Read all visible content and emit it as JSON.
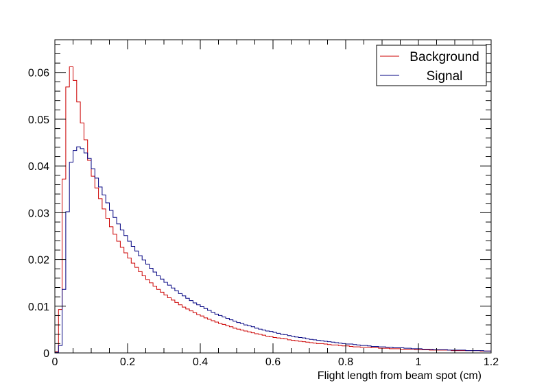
{
  "chart_data": {
    "type": "line",
    "style": "step-histogram",
    "title": "",
    "xlabel": "Flight length from beam spot (cm)",
    "ylabel": "",
    "xlim": [
      0,
      1.2
    ],
    "ylim": [
      0,
      0.067
    ],
    "x_ticks": [
      "0",
      "0.2",
      "0.4",
      "0.6",
      "0.8",
      "1",
      "1.2"
    ],
    "y_ticks": [
      "0",
      "0.01",
      "0.02",
      "0.03",
      "0.04",
      "0.05",
      "0.06"
    ],
    "x_tick_values": [
      0,
      0.2,
      0.4,
      0.6,
      0.8,
      1.0,
      1.2
    ],
    "y_tick_values": [
      0,
      0.01,
      0.02,
      0.03,
      0.04,
      0.05,
      0.06
    ],
    "grid": false,
    "legend_position": "top-right",
    "bin_width": 0.01,
    "bin_start": 0,
    "series": [
      {
        "name": "Background",
        "color": "#cc0000",
        "values": [
          0.0003,
          0.0093,
          0.0372,
          0.0569,
          0.0612,
          0.0583,
          0.0537,
          0.0492,
          0.0456,
          0.0412,
          0.0378,
          0.0353,
          0.033,
          0.0308,
          0.0288,
          0.027,
          0.0254,
          0.0239,
          0.0226,
          0.0214,
          0.0203,
          0.0192,
          0.0183,
          0.0174,
          0.0165,
          0.0157,
          0.015,
          0.0143,
          0.0136,
          0.013,
          0.0124,
          0.0118,
          0.0113,
          0.0108,
          0.0103,
          0.0098,
          0.0094,
          0.009,
          0.0086,
          0.0082,
          0.0079,
          0.0075,
          0.0072,
          0.0069,
          0.0066,
          0.0063,
          0.0061,
          0.0058,
          0.0056,
          0.0053,
          0.0051,
          0.0049,
          0.0047,
          0.0045,
          0.0043,
          0.0041,
          0.004,
          0.0038,
          0.0036,
          0.0035,
          0.0033,
          0.0032,
          0.0031,
          0.003,
          0.0028,
          0.0027,
          0.0026,
          0.0025,
          0.0024,
          0.0023,
          0.0022,
          0.0021,
          0.002,
          0.002,
          0.0019,
          0.0018,
          0.0017,
          0.0017,
          0.0016,
          0.0015,
          0.0015,
          0.0014,
          0.0013,
          0.0013,
          0.0012,
          0.0012,
          0.0012,
          0.0011,
          0.0011,
          0.001,
          0.001,
          0.001,
          0.0009,
          0.0009,
          0.0009,
          0.0008,
          0.0008,
          0.0008,
          0.0008,
          0.0007,
          0.0007,
          0.0007,
          0.0007,
          0.0006,
          0.0006,
          0.0006,
          0.0006,
          0.0006,
          0.0006,
          0.0005,
          0.0005,
          0.0005,
          0.0005,
          0.0005,
          0.0005,
          0.0005,
          0.0005,
          0.0004,
          0.0004,
          0.0004
        ]
      },
      {
        "name": "Signal",
        "color": "#000080",
        "values": [
          0.0001,
          0.0016,
          0.0136,
          0.0302,
          0.0408,
          0.0433,
          0.0441,
          0.0437,
          0.0428,
          0.0416,
          0.0394,
          0.0374,
          0.0355,
          0.0338,
          0.0321,
          0.0305,
          0.029,
          0.0276,
          0.0263,
          0.0251,
          0.0239,
          0.0228,
          0.0218,
          0.0208,
          0.0199,
          0.019,
          0.0181,
          0.0173,
          0.0165,
          0.0158,
          0.0151,
          0.0145,
          0.0139,
          0.0133,
          0.0127,
          0.0122,
          0.0117,
          0.0112,
          0.0107,
          0.0103,
          0.0099,
          0.0095,
          0.0091,
          0.0087,
          0.0083,
          0.008,
          0.0077,
          0.0074,
          0.0071,
          0.0068,
          0.0065,
          0.0063,
          0.006,
          0.0058,
          0.0056,
          0.0053,
          0.0051,
          0.0049,
          0.0047,
          0.0046,
          0.0044,
          0.0042,
          0.004,
          0.0039,
          0.0037,
          0.0036,
          0.0034,
          0.0033,
          0.0032,
          0.003,
          0.0029,
          0.0028,
          0.0027,
          0.0026,
          0.0025,
          0.0024,
          0.0023,
          0.0022,
          0.0021,
          0.002,
          0.0019,
          0.0019,
          0.0018,
          0.0017,
          0.0016,
          0.0016,
          0.0015,
          0.0014,
          0.0014,
          0.0013,
          0.0013,
          0.0012,
          0.0012,
          0.0011,
          0.0011,
          0.0011,
          0.001,
          0.001,
          0.0009,
          0.0009,
          0.0009,
          0.0008,
          0.0008,
          0.0008,
          0.0007,
          0.0007,
          0.0007,
          0.0007,
          0.0006,
          0.0006,
          0.0006,
          0.0006,
          0.0006,
          0.0005,
          0.0005,
          0.0005,
          0.0005,
          0.0005,
          0.0004,
          0.0004
        ]
      }
    ]
  }
}
